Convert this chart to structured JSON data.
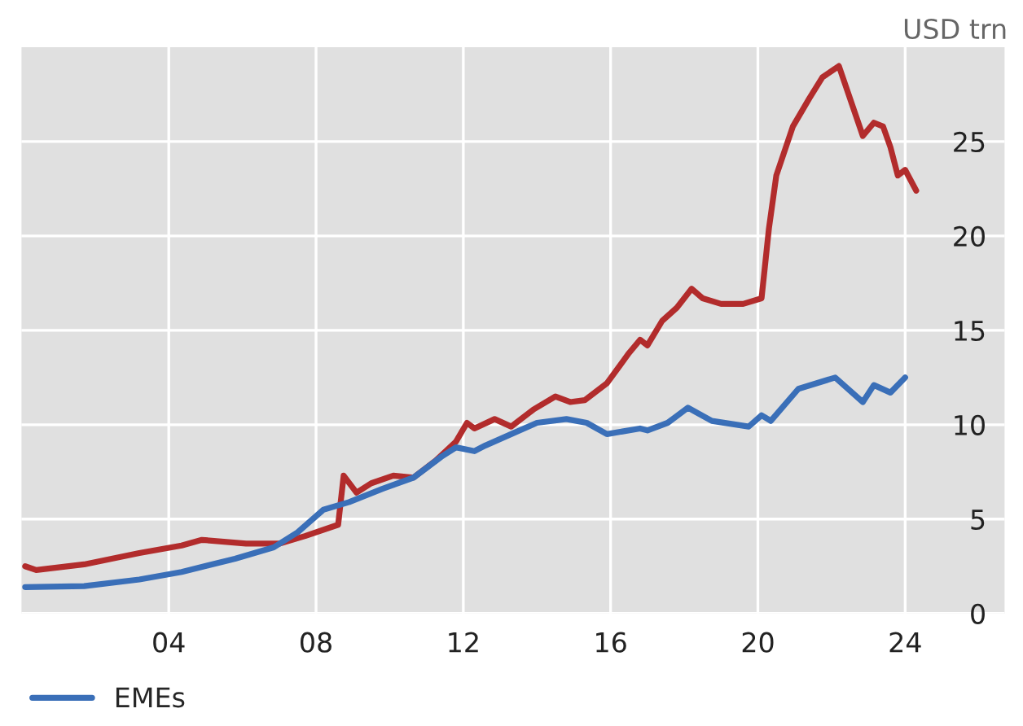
{
  "chart_data": {
    "type": "line",
    "ylabel": "USD trn",
    "xlim": [
      2000,
      2026.7
    ],
    "ylim": [
      0,
      30
    ],
    "xticks": [
      {
        "value": 2004,
        "label": "04"
      },
      {
        "value": 2008,
        "label": "08"
      },
      {
        "value": 2012,
        "label": "12"
      },
      {
        "value": 2016,
        "label": "16"
      },
      {
        "value": 2020,
        "label": "20"
      },
      {
        "value": 2024,
        "label": "24"
      }
    ],
    "yticks": [
      0,
      5,
      10,
      15,
      20,
      25
    ],
    "grid": true,
    "legend": "bottom left",
    "line_style": "solid",
    "series": [
      {
        "color": "#b22c2c",
        "x": [
          2000.1,
          2000.4,
          2001.7,
          2003.2,
          2004.35,
          2004.9,
          2006.1,
          2007.0,
          2007.7,
          2008.6,
          2008.75,
          2009.1,
          2009.5,
          2010.1,
          2010.65,
          2011.25,
          2011.8,
          2012.1,
          2012.3,
          2012.85,
          2013.3,
          2013.9,
          2014.5,
          2014.9,
          2015.3,
          2015.9,
          2016.5,
          2016.8,
          2017.0,
          2017.4,
          2017.8,
          2018.2,
          2018.5,
          2019.0,
          2019.6,
          2020.1,
          2020.3,
          2020.5,
          2020.95,
          2021.4,
          2021.75,
          2022.2,
          2022.85,
          2023.15,
          2023.4,
          2023.6,
          2023.8,
          2024.0,
          2024.3
        ],
        "values": [
          2.5,
          2.3,
          2.6,
          3.2,
          3.6,
          3.9,
          3.7,
          3.7,
          4.1,
          4.7,
          7.3,
          6.4,
          6.9,
          7.3,
          7.2,
          8.1,
          9.1,
          10.1,
          9.8,
          10.3,
          9.9,
          10.8,
          11.5,
          11.2,
          11.3,
          12.2,
          13.8,
          14.5,
          14.2,
          15.5,
          16.2,
          17.2,
          16.7,
          16.4,
          16.4,
          16.7,
          20.4,
          23.2,
          25.8,
          27.3,
          28.4,
          29.0,
          25.3,
          26.0,
          25.8,
          24.7,
          23.2,
          23.5,
          22.4
        ]
      },
      {
        "name": "EMEs",
        "color": "#3a6fb8",
        "x": [
          2000.1,
          2001.7,
          2003.2,
          2004.35,
          2005.8,
          2006.85,
          2007.5,
          2008.2,
          2008.9,
          2009.8,
          2010.65,
          2011.4,
          2011.8,
          2012.3,
          2012.6,
          2013.3,
          2014.0,
          2014.8,
          2015.35,
          2015.9,
          2016.8,
          2017.0,
          2017.55,
          2018.1,
          2018.75,
          2019.75,
          2020.1,
          2020.35,
          2021.1,
          2022.1,
          2022.85,
          2023.15,
          2023.6,
          2024.0
        ],
        "values": [
          1.4,
          1.45,
          1.8,
          2.2,
          2.9,
          3.5,
          4.3,
          5.5,
          5.9,
          6.6,
          7.2,
          8.3,
          8.8,
          8.6,
          8.9,
          9.5,
          10.1,
          10.3,
          10.1,
          9.5,
          9.8,
          9.7,
          10.1,
          10.9,
          10.2,
          9.9,
          10.5,
          10.2,
          11.9,
          12.5,
          11.2,
          12.1,
          11.7,
          12.5
        ]
      }
    ]
  }
}
